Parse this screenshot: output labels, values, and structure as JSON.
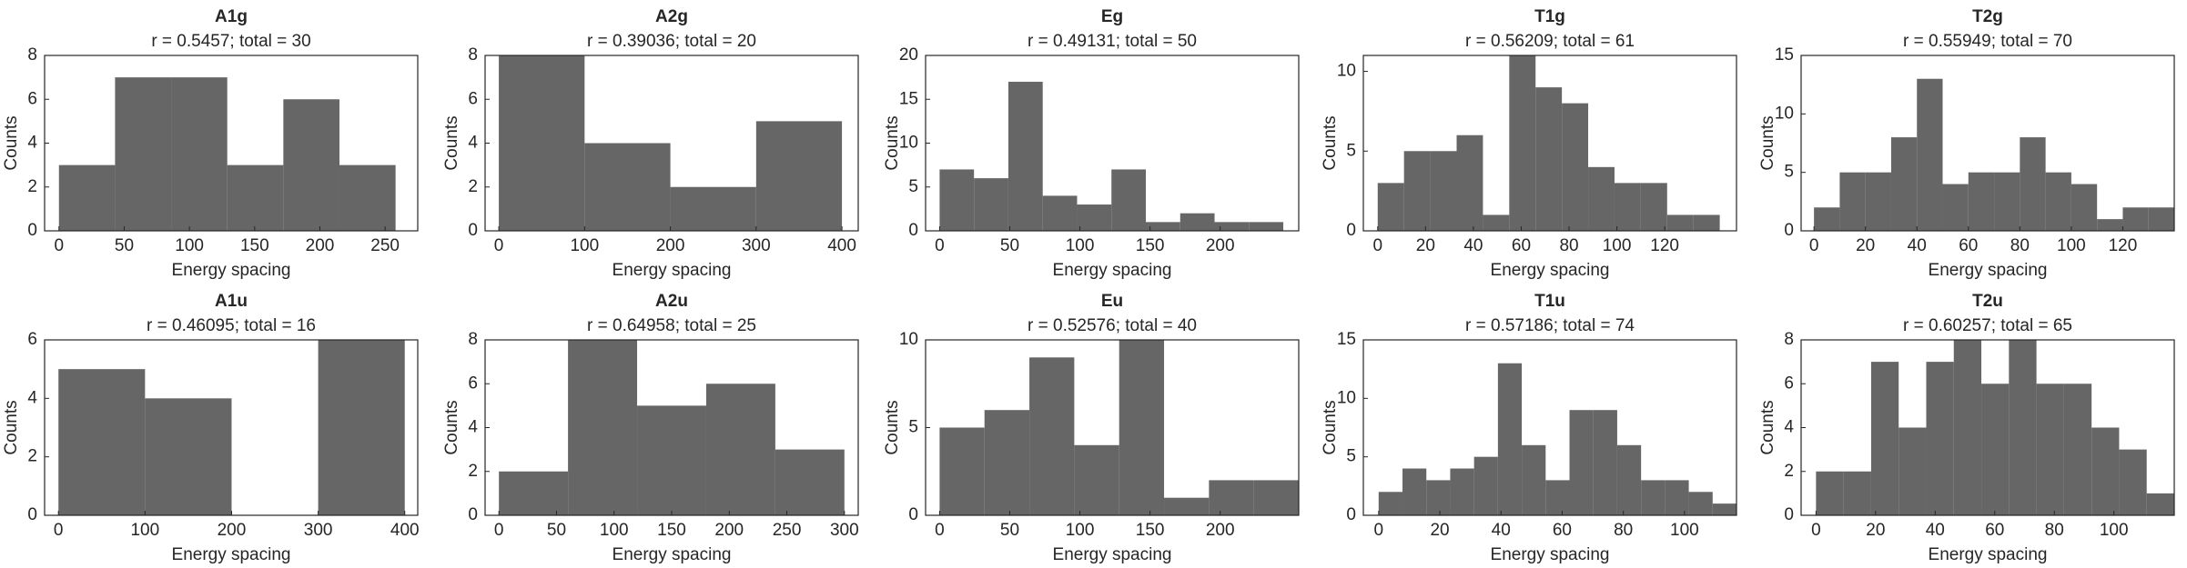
{
  "chart_data": [
    {
      "type": "histogram",
      "title": "A1g",
      "subtitle": "r = 0.5457; total = 30",
      "xlabel": "Energy spacing",
      "ylabel": "Counts",
      "color": "#666666",
      "bins": [
        0,
        43,
        86,
        129,
        172,
        215,
        258
      ],
      "values": [
        3,
        7,
        7,
        3,
        6,
        3
      ],
      "xlim": [
        -11,
        275
      ],
      "xticks": [
        0,
        50,
        100,
        150,
        200,
        250
      ],
      "ylim": [
        0,
        8
      ],
      "yticks": [
        0,
        2,
        4,
        6,
        8
      ]
    },
    {
      "type": "histogram",
      "title": "A2g",
      "subtitle": "r = 0.39036; total = 20",
      "xlabel": "Energy spacing",
      "ylabel": "Counts",
      "color": "#666666",
      "bins": [
        0,
        100,
        200,
        300,
        400
      ],
      "values": [
        8,
        4,
        2,
        5
      ],
      "xlim": [
        -16,
        419
      ],
      "xticks": [
        0,
        100,
        200,
        300,
        400
      ],
      "ylim": [
        0,
        8
      ],
      "yticks": [
        0,
        2,
        4,
        6,
        8
      ]
    },
    {
      "type": "histogram",
      "title": "Eg",
      "subtitle": "r = 0.49131; total = 50",
      "xlabel": "Energy spacing",
      "ylabel": "Counts",
      "color": "#666666",
      "bins": [
        0,
        24.5,
        49,
        73.5,
        98,
        122.5,
        147,
        171.5,
        196,
        220.5,
        245
      ],
      "values": [
        7,
        6,
        17,
        4,
        3,
        7,
        1,
        2,
        1,
        1
      ],
      "xlim": [
        -10,
        256
      ],
      "xticks": [
        0,
        50,
        100,
        150,
        200
      ],
      "ylim": [
        0,
        20
      ],
      "yticks": [
        0,
        5,
        10,
        15,
        20
      ]
    },
    {
      "type": "histogram",
      "title": "T1g",
      "subtitle": "r = 0.56209; total = 61",
      "xlabel": "Energy spacing",
      "ylabel": "Counts",
      "color": "#666666",
      "bins": [
        0,
        11,
        22,
        33,
        44,
        55,
        66,
        77,
        88,
        99,
        110,
        121,
        132,
        143
      ],
      "values": [
        3,
        5,
        5,
        6,
        1,
        11,
        9,
        8,
        4,
        3,
        3,
        1,
        1
      ],
      "xlim": [
        -6,
        150
      ],
      "xticks": [
        0,
        20,
        40,
        60,
        80,
        100,
        120
      ],
      "ylim": [
        0,
        11
      ],
      "yticks": [
        0,
        5,
        10
      ]
    },
    {
      "type": "histogram",
      "title": "T2g",
      "subtitle": "r = 0.55949; total = 70",
      "xlabel": "Energy spacing",
      "ylabel": "Counts",
      "color": "#666666",
      "bins": [
        0,
        10,
        20,
        30,
        40,
        50,
        60,
        70,
        80,
        90,
        100,
        110,
        120,
        130,
        140
      ],
      "values": [
        2,
        5,
        5,
        8,
        13,
        4,
        5,
        5,
        8,
        5,
        4,
        1,
        2,
        2
      ],
      "xlim": [
        -5,
        140
      ],
      "xticks": [
        0,
        20,
        40,
        60,
        80,
        100,
        120
      ],
      "ylim": [
        0,
        15
      ],
      "yticks": [
        0,
        5,
        10,
        15
      ]
    },
    {
      "type": "histogram",
      "title": "A1u",
      "subtitle": "r = 0.46095; total = 16",
      "xlabel": "Energy spacing",
      "ylabel": "Counts",
      "color": "#666666",
      "bins": [
        0,
        100,
        200,
        300,
        400
      ],
      "values": [
        5,
        4,
        0,
        6
      ],
      "xlim": [
        -16,
        415
      ],
      "xticks": [
        0,
        100,
        200,
        300,
        400
      ],
      "ylim": [
        0,
        6
      ],
      "yticks": [
        0,
        2,
        4,
        6
      ]
    },
    {
      "type": "histogram",
      "title": "A2u",
      "subtitle": "r = 0.64958; total = 25",
      "xlabel": "Energy spacing",
      "ylabel": "Counts",
      "color": "#666666",
      "bins": [
        0,
        60,
        120,
        180,
        240,
        300
      ],
      "values": [
        2,
        8,
        5,
        6,
        3
      ],
      "xlim": [
        -12,
        312
      ],
      "xticks": [
        0,
        50,
        100,
        150,
        200,
        250,
        300
      ],
      "ylim": [
        0,
        8
      ],
      "yticks": [
        0,
        2,
        4,
        6,
        8
      ]
    },
    {
      "type": "histogram",
      "title": "Eu",
      "subtitle": "r = 0.52576; total = 40",
      "xlabel": "Energy spacing",
      "ylabel": "Counts",
      "color": "#666666",
      "bins": [
        0,
        32,
        64,
        96,
        128,
        160,
        192,
        224,
        256
      ],
      "values": [
        5,
        6,
        9,
        4,
        10,
        1,
        2,
        2
      ],
      "xlim": [
        -10,
        256
      ],
      "xticks": [
        0,
        50,
        100,
        150,
        200
      ],
      "ylim": [
        0,
        10
      ],
      "yticks": [
        0,
        5,
        10
      ]
    },
    {
      "type": "histogram",
      "title": "T1u",
      "subtitle": "r = 0.57186; total = 74",
      "xlabel": "Energy spacing",
      "ylabel": "Counts",
      "color": "#666666",
      "bins": [
        0,
        7.8,
        15.6,
        23.4,
        31.2,
        39,
        46.8,
        54.6,
        62.4,
        70.2,
        78,
        85.8,
        93.6,
        101.4,
        109.2,
        117
      ],
      "values": [
        2,
        4,
        3,
        4,
        5,
        13,
        6,
        3,
        9,
        9,
        6,
        3,
        3,
        2,
        1
      ],
      "xlim": [
        -5,
        117
      ],
      "xticks": [
        0,
        20,
        40,
        60,
        80,
        100
      ],
      "ylim": [
        0,
        15
      ],
      "yticks": [
        0,
        5,
        10,
        15
      ]
    },
    {
      "type": "histogram",
      "title": "T2u",
      "subtitle": "r = 0.60257; total = 65",
      "xlabel": "Energy spacing",
      "ylabel": "Counts",
      "color": "#666666",
      "bins": [
        0,
        9.25,
        18.5,
        27.75,
        37,
        46.25,
        55.5,
        64.75,
        74,
        83.25,
        92.5,
        101.75,
        111,
        120.25
      ],
      "values": [
        2,
        2,
        7,
        4,
        7,
        8,
        6,
        8,
        6,
        6,
        4,
        3,
        1
      ],
      "xlim": [
        -5,
        120.25
      ],
      "xticks": [
        0,
        20,
        40,
        60,
        80,
        100
      ],
      "ylim": [
        0,
        8
      ],
      "yticks": [
        0,
        2,
        4,
        6,
        8
      ]
    }
  ]
}
